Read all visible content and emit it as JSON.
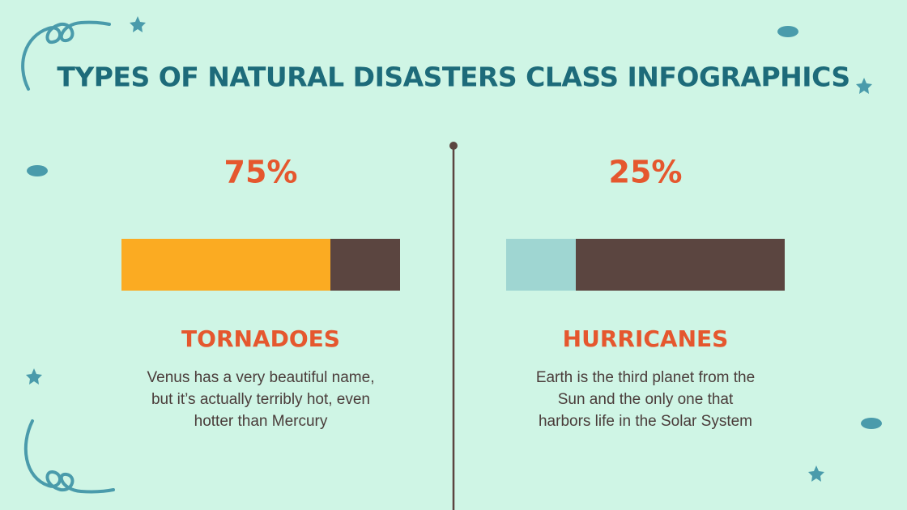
{
  "title": "TYPES OF NATURAL DISASTERS CLASS INFOGRAPHICS",
  "items": [
    {
      "value": 75,
      "value_label": "75%",
      "heading": "TORNADOES",
      "fill_color": "#fbab22",
      "description": [
        "Venus has a very beautiful name,",
        "but it’s actually terribly hot, even",
        "hotter than Mercury"
      ]
    },
    {
      "value": 25,
      "value_label": "25%",
      "heading": "HURRICANES",
      "fill_color": "#9fd6d2",
      "description": [
        "Earth is the third planet from the",
        "Sun and the only one that",
        "harbors life in the Solar System"
      ]
    }
  ],
  "bar_max": 100,
  "track_color": "#5b4540"
}
